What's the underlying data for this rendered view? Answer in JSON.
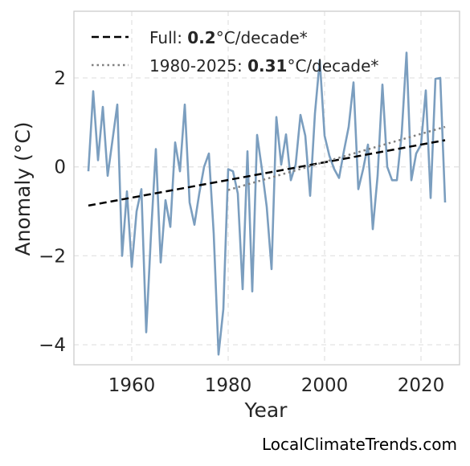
{
  "chart_data": {
    "type": "line",
    "xlabel": "Year",
    "ylabel": "Anomaly (°C)",
    "xlim": [
      1948,
      2028
    ],
    "ylim": [
      -4.45,
      3.5
    ],
    "xticks": [
      1960,
      1980,
      2000,
      2020
    ],
    "yticks": [
      -4,
      -2,
      0,
      2
    ],
    "ytick_labels": [
      "−4",
      "−2",
      "0",
      "2"
    ],
    "grid": true,
    "legend_position": "top-left",
    "series": [
      {
        "style": "solid",
        "color": "#7b9ebf",
        "x": [
          1951,
          1952,
          1953,
          1954,
          1955,
          1956,
          1957,
          1958,
          1959,
          1960,
          1961,
          1962,
          1963,
          1964,
          1965,
          1966,
          1967,
          1968,
          1969,
          1970,
          1971,
          1972,
          1973,
          1974,
          1975,
          1976,
          1977,
          1978,
          1979,
          1980,
          1981,
          1982,
          1983,
          1984,
          1985,
          1986,
          1987,
          1988,
          1989,
          1990,
          1991,
          1992,
          1993,
          1994,
          1995,
          1996,
          1997,
          1998,
          1999,
          2000,
          2001,
          2002,
          2003,
          2004,
          2005,
          2006,
          2007,
          2008,
          2009,
          2010,
          2011,
          2012,
          2013,
          2014,
          2015,
          2016,
          2017,
          2018,
          2019,
          2020,
          2021,
          2022,
          2023,
          2024,
          2025
        ],
        "y": [
          -0.1,
          1.7,
          0.15,
          1.35,
          -0.2,
          0.6,
          1.4,
          -2.0,
          -0.55,
          -2.25,
          -1.0,
          -0.5,
          -3.72,
          -1.5,
          0.4,
          -2.15,
          -0.75,
          -1.35,
          0.55,
          -0.1,
          1.4,
          -0.8,
          -1.3,
          -0.6,
          0.0,
          0.3,
          -1.5,
          -4.22,
          -3.2,
          -0.05,
          -0.1,
          -0.6,
          -2.75,
          0.35,
          -2.8,
          0.72,
          -0.05,
          -0.9,
          -2.3,
          1.12,
          0.05,
          0.73,
          -0.3,
          0.05,
          1.17,
          0.7,
          -0.65,
          1.2,
          2.4,
          0.7,
          0.25,
          -0.05,
          -0.25,
          0.35,
          0.9,
          1.9,
          -0.5,
          -0.05,
          0.5,
          -1.4,
          -0.2,
          1.85,
          0.0,
          -0.3,
          -0.3,
          0.75,
          2.57,
          -0.3,
          0.3,
          0.5,
          1.72,
          -0.7,
          1.98,
          2.0,
          -0.8
        ]
      },
      {
        "name": "Full: 0.2°C/decade*",
        "style": "dashed",
        "color": "#000000",
        "x": [
          1951,
          2025
        ],
        "y": [
          -0.87,
          0.6
        ]
      },
      {
        "name": "1980-2025: 0.31°C/decade*",
        "style": "dotted",
        "color": "#808080",
        "x": [
          1980,
          2025
        ],
        "y": [
          -0.52,
          0.9
        ]
      }
    ],
    "legend": [
      {
        "prefix": "Full: ",
        "bold": "0.2",
        "suffix": "°C/decade*"
      },
      {
        "prefix": "1980-2025: ",
        "bold": "0.31",
        "suffix": "°C/decade*"
      }
    ]
  },
  "credit": "LocalClimateTrends.com",
  "colors": {
    "grid": "#e3e3e3",
    "frame": "#cccccc",
    "text": "#262626"
  }
}
